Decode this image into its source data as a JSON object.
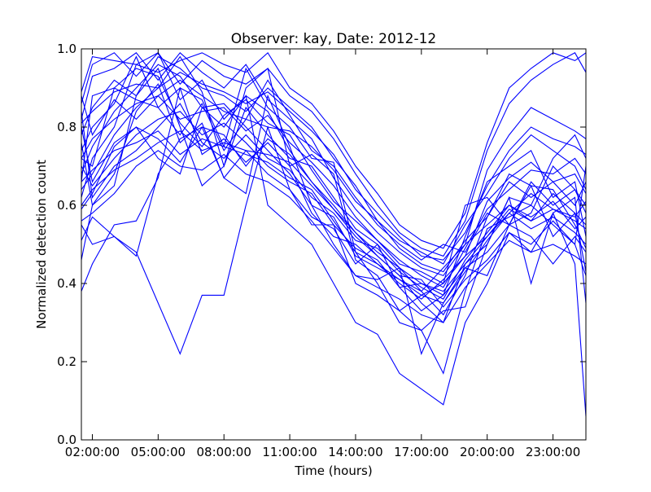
{
  "chart_data": {
    "type": "line",
    "title": "Observer: kay, Date: 2012-12",
    "xlabel": "Time (hours)",
    "ylabel": "Normalized detection count",
    "xlim": [
      1.5,
      24.5
    ],
    "ylim": [
      0.0,
      1.0
    ],
    "xticks": [
      2,
      5,
      8,
      11,
      14,
      17,
      20,
      23
    ],
    "xtick_labels": [
      "02:00:00",
      "05:00:00",
      "08:00:00",
      "11:00:00",
      "14:00:00",
      "17:00:00",
      "20:00:00",
      "23:00:00"
    ],
    "yticks": [
      0.0,
      0.2,
      0.4,
      0.6,
      0.8,
      1.0
    ],
    "ytick_labels": [
      "0.0",
      "0.2",
      "0.4",
      "0.6",
      "0.8",
      "1.0"
    ],
    "grid": false,
    "color": "#0000ff",
    "x": [
      1.5,
      2,
      3,
      4,
      5,
      6,
      7,
      8,
      9,
      10,
      11,
      12,
      13,
      14,
      15,
      16,
      17,
      18,
      19,
      20,
      21,
      22,
      23,
      24,
      24.5
    ],
    "series": [
      {
        "values": [
          0.38,
          0.45,
          0.55,
          0.56,
          0.67,
          0.9,
          0.87,
          0.75,
          0.95,
          0.85,
          0.8,
          0.72,
          0.71,
          0.48,
          0.4,
          0.3,
          0.28,
          0.17,
          0.38,
          0.54,
          0.57,
          0.6,
          0.55,
          0.5,
          0.7
        ]
      },
      {
        "values": [
          0.46,
          0.6,
          0.65,
          0.88,
          0.95,
          0.8,
          0.65,
          0.7,
          0.9,
          0.95,
          0.7,
          0.73,
          0.68,
          0.46,
          0.42,
          0.33,
          0.37,
          0.4,
          0.6,
          0.62,
          0.55,
          0.65,
          0.52,
          0.58,
          0.43
        ]
      },
      {
        "values": [
          0.51,
          0.57,
          0.52,
          0.48,
          0.35,
          0.22,
          0.37,
          0.37,
          0.6,
          0.8,
          0.64,
          0.55,
          0.55,
          0.4,
          0.37,
          0.33,
          0.28,
          0.33,
          0.34,
          0.5,
          0.62,
          0.4,
          0.58,
          0.45,
          0.06
        ]
      },
      {
        "values": [
          0.55,
          0.5,
          0.52,
          0.47,
          0.68,
          0.77,
          0.8,
          0.67,
          0.63,
          0.88,
          0.75,
          0.6,
          0.5,
          0.42,
          0.41,
          0.44,
          0.22,
          0.35,
          0.44,
          0.42,
          0.55,
          0.52,
          0.45,
          0.52,
          0.48
        ]
      },
      {
        "values": [
          0.59,
          0.63,
          0.75,
          0.8,
          0.72,
          0.68,
          0.85,
          0.8,
          0.88,
          0.6,
          0.55,
          0.5,
          0.4,
          0.3,
          0.27,
          0.17,
          0.13,
          0.09,
          0.3,
          0.4,
          0.53,
          0.48,
          0.58,
          0.62,
          0.35
        ]
      },
      {
        "values": [
          0.62,
          0.72,
          0.8,
          0.96,
          0.99,
          0.87,
          0.92,
          0.82,
          0.88,
          0.84,
          0.74,
          0.66,
          0.6,
          0.53,
          0.47,
          0.42,
          0.35,
          0.3,
          0.45,
          0.5,
          0.62,
          0.6,
          0.72,
          0.78,
          0.72
        ]
      },
      {
        "values": [
          0.64,
          0.68,
          0.78,
          0.85,
          0.9,
          0.98,
          0.89,
          0.7,
          0.85,
          0.78,
          0.72,
          0.7,
          0.62,
          0.54,
          0.5,
          0.44,
          0.38,
          0.32,
          0.42,
          0.57,
          0.68,
          0.65,
          0.64,
          0.55,
          0.49
        ]
      },
      {
        "values": [
          0.66,
          0.88,
          0.9,
          0.87,
          0.85,
          0.9,
          0.73,
          0.77,
          0.71,
          0.76,
          0.7,
          0.58,
          0.52,
          0.5,
          0.45,
          0.4,
          0.36,
          0.41,
          0.47,
          0.52,
          0.58,
          0.63,
          0.59,
          0.57,
          0.61
        ]
      },
      {
        "values": [
          0.68,
          0.75,
          0.84,
          0.9,
          0.96,
          0.93,
          0.85,
          0.86,
          0.8,
          0.74,
          0.68,
          0.6,
          0.57,
          0.47,
          0.44,
          0.41,
          0.38,
          0.44,
          0.5,
          0.55,
          0.6,
          0.56,
          0.63,
          0.58,
          0.55
        ]
      },
      {
        "values": [
          0.7,
          0.65,
          0.72,
          0.78,
          0.82,
          0.84,
          0.78,
          0.81,
          0.76,
          0.7,
          0.66,
          0.63,
          0.55,
          0.49,
          0.46,
          0.39,
          0.4,
          0.37,
          0.44,
          0.48,
          0.55,
          0.66,
          0.6,
          0.64,
          0.58
        ]
      },
      {
        "values": [
          0.72,
          0.7,
          0.9,
          0.95,
          0.93,
          0.81,
          0.75,
          0.83,
          0.87,
          0.81,
          0.78,
          0.69,
          0.61,
          0.56,
          0.51,
          0.45,
          0.43,
          0.4,
          0.47,
          0.61,
          0.67,
          0.71,
          0.66,
          0.6,
          0.66
        ]
      },
      {
        "values": [
          0.74,
          0.8,
          0.86,
          0.98,
          0.85,
          0.78,
          0.86,
          0.74,
          0.82,
          0.92,
          0.83,
          0.74,
          0.7,
          0.62,
          0.55,
          0.5,
          0.46,
          0.5,
          0.48,
          0.58,
          0.55,
          0.58,
          0.7,
          0.64,
          0.6
        ]
      },
      {
        "values": [
          0.76,
          0.6,
          0.68,
          0.84,
          0.91,
          0.76,
          0.81,
          0.67,
          0.74,
          0.68,
          0.64,
          0.57,
          0.54,
          0.45,
          0.5,
          0.39,
          0.33,
          0.37,
          0.52,
          0.66,
          0.7,
          0.74,
          0.62,
          0.66,
          0.52
        ]
      },
      {
        "values": [
          0.78,
          0.85,
          0.92,
          0.88,
          0.98,
          0.95,
          0.9,
          0.88,
          0.84,
          0.9,
          0.85,
          0.8,
          0.72,
          0.65,
          0.56,
          0.51,
          0.48,
          0.45,
          0.55,
          0.63,
          0.72,
          0.78,
          0.74,
          0.7,
          0.64
        ]
      },
      {
        "values": [
          0.8,
          0.66,
          0.76,
          0.8,
          0.77,
          0.71,
          0.8,
          0.78,
          0.7,
          0.77,
          0.73,
          0.66,
          0.59,
          0.52,
          0.47,
          0.42,
          0.41,
          0.34,
          0.41,
          0.46,
          0.53,
          0.5,
          0.56,
          0.5,
          0.42
        ]
      },
      {
        "values": [
          0.82,
          0.93,
          0.95,
          0.99,
          0.92,
          0.99,
          0.94,
          0.9,
          0.96,
          0.87,
          0.82,
          0.77,
          0.67,
          0.59,
          0.53,
          0.48,
          0.44,
          0.42,
          0.5,
          0.69,
          0.78,
          0.85,
          0.82,
          0.79,
          0.77
        ]
      },
      {
        "values": [
          0.84,
          0.62,
          0.7,
          0.74,
          0.8,
          0.86,
          0.76,
          0.72,
          0.78,
          0.72,
          0.69,
          0.62,
          0.58,
          0.51,
          0.49,
          0.43,
          0.39,
          0.36,
          0.46,
          0.53,
          0.6,
          0.57,
          0.61,
          0.54,
          0.57
        ]
      },
      {
        "values": [
          0.86,
          0.96,
          0.99,
          0.93,
          0.99,
          0.91,
          0.97,
          0.93,
          0.91,
          0.95,
          0.88,
          0.84,
          0.77,
          0.68,
          0.6,
          0.53,
          0.49,
          0.47,
          0.56,
          0.74,
          0.86,
          0.92,
          0.96,
          0.99,
          0.94
        ]
      },
      {
        "values": [
          0.88,
          0.78,
          0.87,
          0.82,
          0.88,
          0.82,
          0.84,
          0.85,
          0.79,
          0.83,
          0.76,
          0.71,
          0.65,
          0.57,
          0.51,
          0.46,
          0.42,
          0.39,
          0.49,
          0.59,
          0.64,
          0.69,
          0.68,
          0.72,
          0.68
        ]
      },
      {
        "values": [
          0.89,
          0.98,
          0.97,
          0.96,
          0.94,
          0.97,
          0.99,
          0.96,
          0.94,
          0.99,
          0.9,
          0.86,
          0.79,
          0.7,
          0.63,
          0.55,
          0.51,
          0.49,
          0.58,
          0.76,
          0.9,
          0.95,
          0.99,
          0.97,
          0.99
        ]
      },
      {
        "values": [
          0.66,
          0.69,
          0.74,
          0.76,
          0.79,
          0.73,
          0.77,
          0.75,
          0.73,
          0.71,
          0.67,
          0.64,
          0.56,
          0.48,
          0.45,
          0.41,
          0.37,
          0.35,
          0.43,
          0.51,
          0.58,
          0.54,
          0.57,
          0.53,
          0.5
        ]
      },
      {
        "values": [
          0.56,
          0.58,
          0.63,
          0.7,
          0.74,
          0.7,
          0.69,
          0.73,
          0.68,
          0.66,
          0.62,
          0.56,
          0.49,
          0.42,
          0.39,
          0.36,
          0.32,
          0.3,
          0.39,
          0.45,
          0.51,
          0.48,
          0.5,
          0.47,
          0.45
        ]
      },
      {
        "values": [
          0.72,
          0.77,
          0.82,
          0.86,
          0.88,
          0.92,
          0.88,
          0.84,
          0.82,
          0.8,
          0.79,
          0.75,
          0.69,
          0.61,
          0.56,
          0.49,
          0.45,
          0.43,
          0.51,
          0.57,
          0.66,
          0.62,
          0.66,
          0.68,
          0.63
        ]
      },
      {
        "values": [
          0.6,
          0.64,
          0.69,
          0.72,
          0.76,
          0.79,
          0.74,
          0.76,
          0.74,
          0.73,
          0.71,
          0.65,
          0.59,
          0.53,
          0.48,
          0.44,
          0.4,
          0.38,
          0.45,
          0.52,
          0.59,
          0.56,
          0.59,
          0.56,
          0.54
        ]
      },
      {
        "values": [
          0.81,
          0.84,
          0.89,
          0.91,
          0.9,
          0.94,
          0.91,
          0.89,
          0.86,
          0.89,
          0.84,
          0.79,
          0.73,
          0.64,
          0.58,
          0.52,
          0.47,
          0.46,
          0.53,
          0.65,
          0.74,
          0.8,
          0.77,
          0.75,
          0.73
        ]
      }
    ]
  }
}
